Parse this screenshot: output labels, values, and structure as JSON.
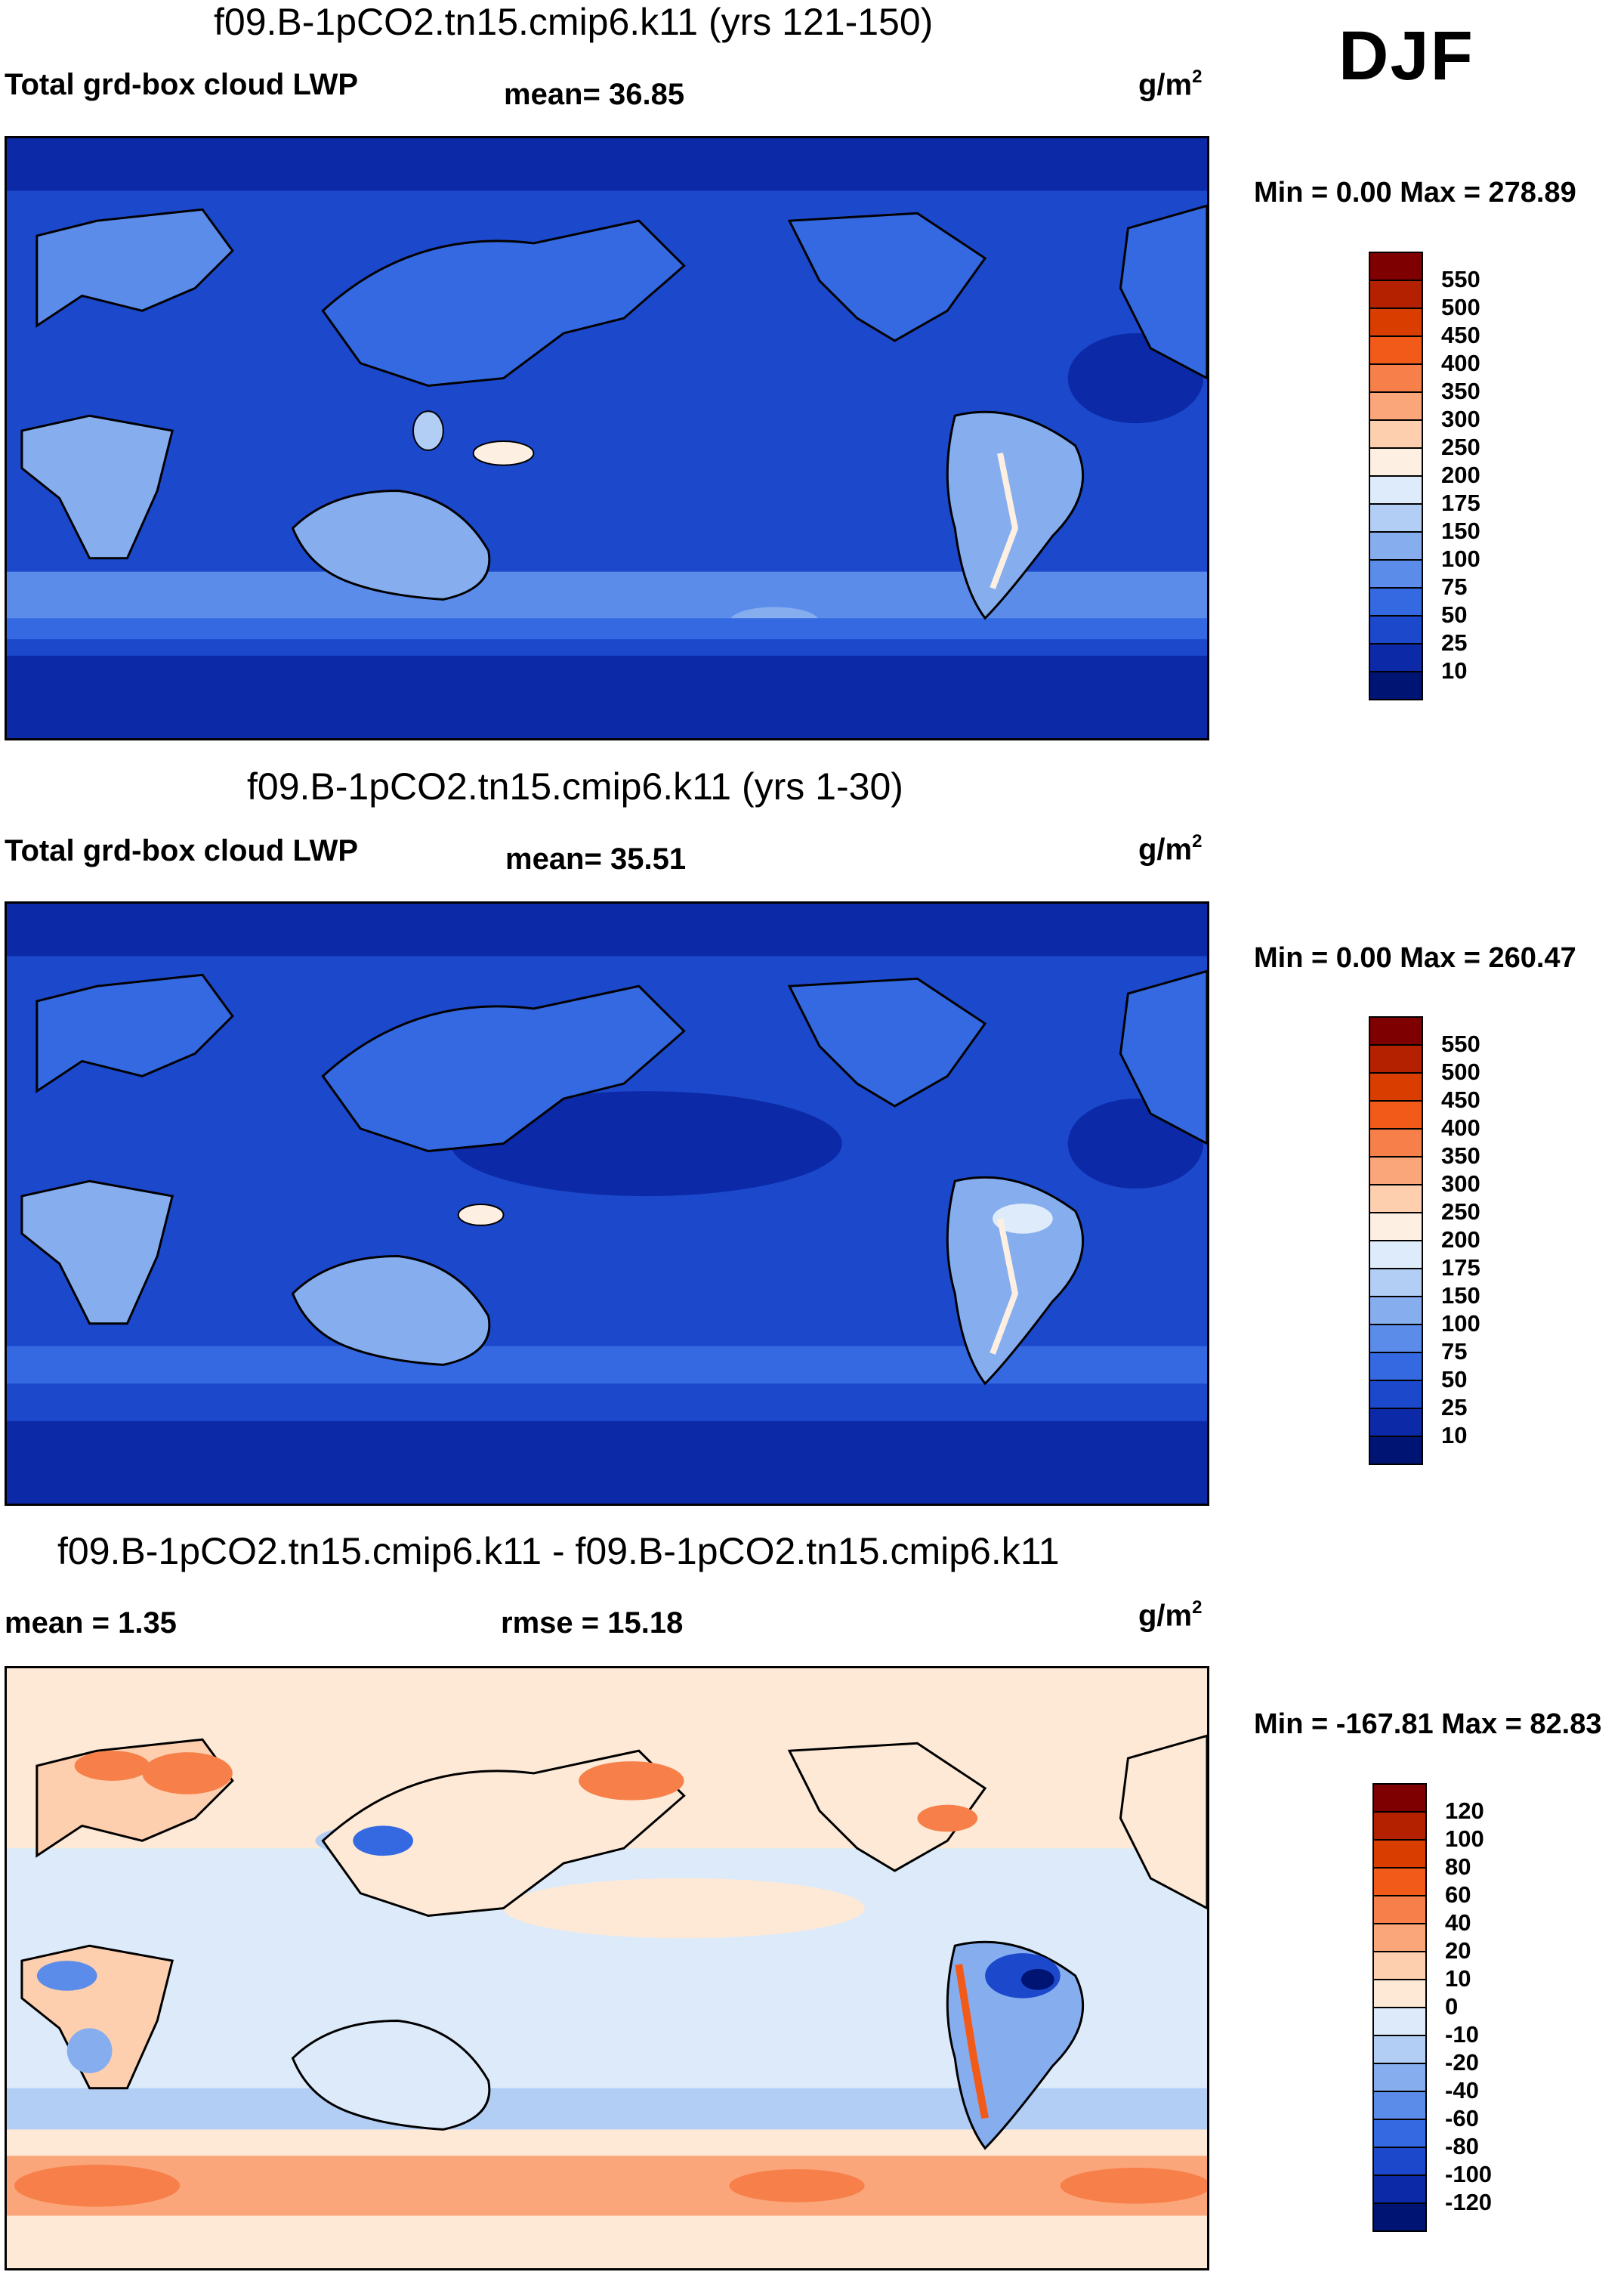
{
  "season": "DJF",
  "units": {
    "base": "g/m",
    "sup": "2"
  },
  "panels": [
    {
      "title": "f09.B-1pCO2.tn15.cmip6.k11 (yrs 121-150)",
      "label_left": "Total grd-box cloud LWP",
      "label_mid": "mean=  36.85",
      "minmax": "Min =   0.00 Max = 278.89"
    },
    {
      "title": "f09.B-1pCO2.tn15.cmip6.k11 (yrs 1-30)",
      "label_left": "Total grd-box cloud LWP",
      "label_mid": "mean=  35.51",
      "minmax": "Min =   0.00 Max = 260.47"
    },
    {
      "title": "f09.B-1pCO2.tn15.cmip6.k11 - f09.B-1pCO2.tn15.cmip6.k11",
      "label_left": "mean =   1.35",
      "label_mid": "rmse =  15.18",
      "minmax": "Min = -167.81 Max =  82.83"
    }
  ],
  "colorbar_abs": {
    "labels": [
      "550",
      "500",
      "450",
      "400",
      "350",
      "300",
      "250",
      "200",
      "175",
      "150",
      "100",
      "75",
      "50",
      "25",
      "10"
    ],
    "colors": [
      "#7f0000",
      "#b32100",
      "#d93d00",
      "#f25a1a",
      "#f7804a",
      "#fba67a",
      "#fdcfae",
      "#fdf0e2",
      "#ddebfa",
      "#b2cef5",
      "#86aeef",
      "#5c8cea",
      "#3469e2",
      "#1c48cc",
      "#0c2aa8",
      "#001473"
    ]
  },
  "colorbar_diff": {
    "labels": [
      "120",
      "100",
      "80",
      "60",
      "40",
      "20",
      "10",
      "0",
      "-10",
      "-20",
      "-40",
      "-60",
      "-80",
      "-100",
      "-120"
    ],
    "colors": [
      "#7f0000",
      "#b32100",
      "#d93d00",
      "#f25a1a",
      "#f7804a",
      "#fba67a",
      "#fdcfae",
      "#fde9d6",
      "#dceaf9",
      "#b2cef5",
      "#86aeef",
      "#5c8cea",
      "#3469e2",
      "#1c48cc",
      "#0c2aa8",
      "#001473"
    ]
  }
}
